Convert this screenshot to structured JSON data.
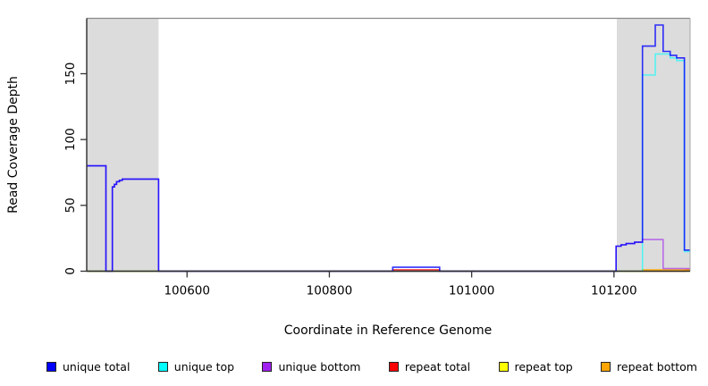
{
  "chart_data": {
    "type": "line",
    "style": "step",
    "title": "",
    "xlabel": "Coordinate in Reference Genome",
    "ylabel": "Read Coverage Depth",
    "xlim": [
      100459,
      101307
    ],
    "ylim": [
      0,
      193
    ],
    "x_ticks": [
      100600,
      100800,
      101000,
      101200
    ],
    "y_ticks": [
      0,
      50,
      100,
      150
    ],
    "grid": false,
    "legend_position": "bottom",
    "background_color": "#ffffff",
    "masked_region_color": "#dcdcdc",
    "shaded_regions": [
      {
        "x0": 100459,
        "x1": 100560
      },
      {
        "x0": 101204,
        "x1": 101307
      }
    ],
    "draw_order": [
      "repeat total",
      "repeat bottom",
      "repeat top",
      "unique top",
      "unique bottom",
      "unique total"
    ],
    "series": [
      {
        "name": "unique total",
        "color": "#0000ff",
        "points": [
          [
            100459,
            80
          ],
          [
            100486,
            0
          ],
          [
            100495,
            64
          ],
          [
            100498,
            66
          ],
          [
            100501,
            68
          ],
          [
            100505,
            69
          ],
          [
            100509,
            70
          ],
          [
            100560,
            0
          ],
          [
            100889,
            3
          ],
          [
            100955,
            0
          ],
          [
            101203,
            19
          ],
          [
            101210,
            20
          ],
          [
            101217,
            21
          ],
          [
            101229,
            22
          ],
          [
            101240,
            171
          ],
          [
            101258,
            187
          ],
          [
            101269,
            167
          ],
          [
            101279,
            164
          ],
          [
            101288,
            162
          ],
          [
            101299,
            16
          ],
          [
            101307,
            16
          ]
        ]
      },
      {
        "name": "unique top",
        "color": "#00ffff",
        "points": [
          [
            100459,
            0
          ],
          [
            101240,
            149
          ],
          [
            101258,
            165
          ],
          [
            101279,
            162
          ],
          [
            101288,
            160
          ],
          [
            101299,
            15
          ],
          [
            101307,
            15
          ]
        ]
      },
      {
        "name": "unique bottom",
        "color": "#a020f0",
        "points": [
          [
            100459,
            80
          ],
          [
            100486,
            0
          ],
          [
            100495,
            64
          ],
          [
            100498,
            66
          ],
          [
            100501,
            68
          ],
          [
            100505,
            69
          ],
          [
            100509,
            70
          ],
          [
            100560,
            0
          ],
          [
            101203,
            19
          ],
          [
            101210,
            20
          ],
          [
            101217,
            21
          ],
          [
            101229,
            22
          ],
          [
            101240,
            24
          ],
          [
            101269,
            2
          ],
          [
            101307,
            2
          ]
        ]
      },
      {
        "name": "repeat total",
        "color": "#ff0000",
        "points": [
          [
            100459,
            0
          ],
          [
            100889,
            1
          ],
          [
            100955,
            0
          ],
          [
            101301,
            1
          ],
          [
            101307,
            1
          ]
        ]
      },
      {
        "name": "repeat top",
        "color": "#ffff00",
        "points": [
          [
            100459,
            0
          ],
          [
            101307,
            0
          ]
        ]
      },
      {
        "name": "repeat bottom",
        "color": "#ffa500",
        "points": [
          [
            100459,
            0
          ],
          [
            101240,
            1
          ],
          [
            101307,
            1
          ]
        ]
      }
    ]
  }
}
